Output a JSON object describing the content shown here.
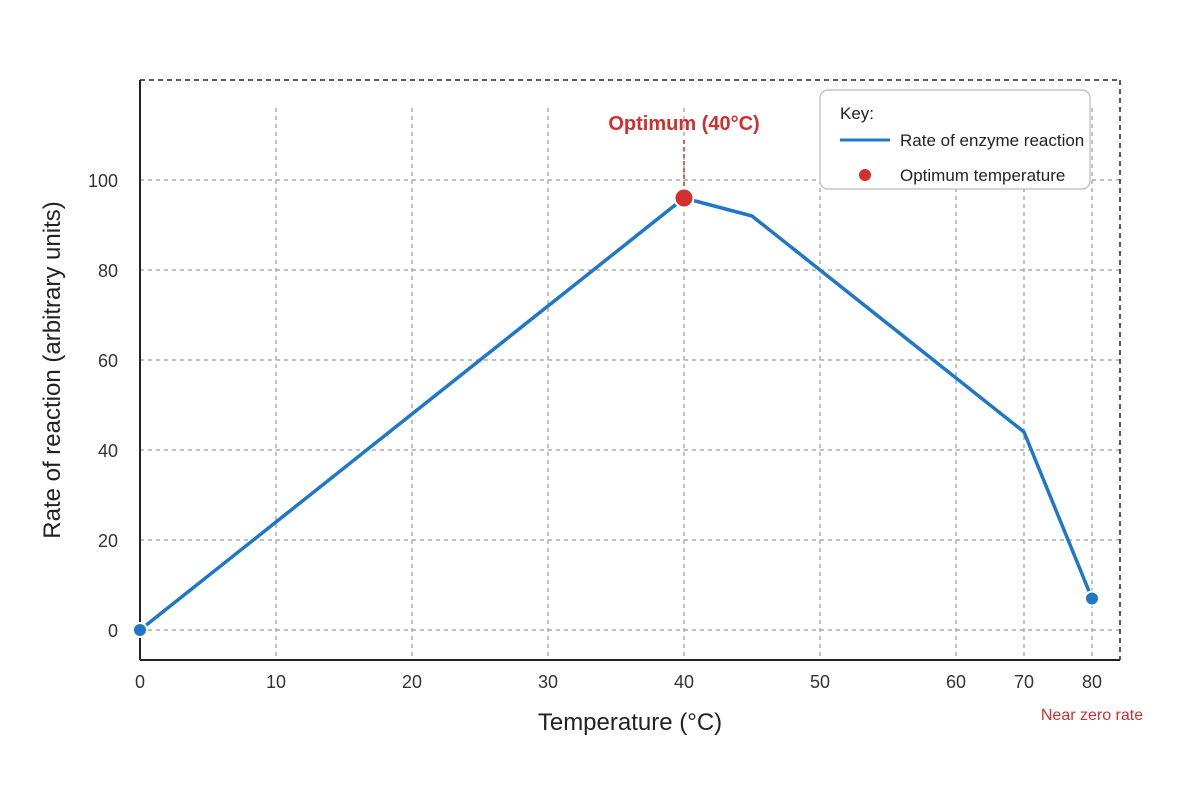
{
  "chart_data": {
    "type": "line",
    "title": "",
    "xlabel": "Temperature (°C)",
    "ylabel": "Rate of reaction (arbitrary units)",
    "xlim": [
      0,
      72
    ],
    "ylim": [
      -6.5,
      122
    ],
    "x_ticks": [
      0,
      10,
      20,
      30,
      40,
      50,
      60,
      70,
      80
    ],
    "x_tick_labels": [
      "0",
      "10",
      "20",
      "30",
      "40",
      "50",
      "60",
      "70",
      "80"
    ],
    "y_ticks": [
      0,
      20,
      40,
      60,
      80,
      100
    ],
    "y_tick_labels": [
      "0",
      "20",
      "40",
      "60",
      "80",
      "100"
    ],
    "grid": true,
    "series": [
      {
        "name": "Rate of enzyme reaction",
        "color": "#1f77c9",
        "x": [
          0,
          40,
          45,
          70,
          80
        ],
        "y": [
          0,
          96,
          92,
          44,
          7
        ]
      }
    ],
    "highlight": {
      "name": "Optimum temperature",
      "x": 40,
      "y": 96,
      "color": "#d32f2f"
    },
    "annotations": {
      "optimum_label": "Optimum (40°C)",
      "end_label": "Near zero rate"
    },
    "legend": {
      "position": "top-right",
      "title": "Key:",
      "line_label": "Rate of enzyme reaction",
      "dot_label": "Optimum temperature"
    },
    "colors": {
      "line": "#1f77c9",
      "accent": "#d32f2f",
      "grid": "#9a9a9a",
      "axis": "#222222"
    }
  }
}
